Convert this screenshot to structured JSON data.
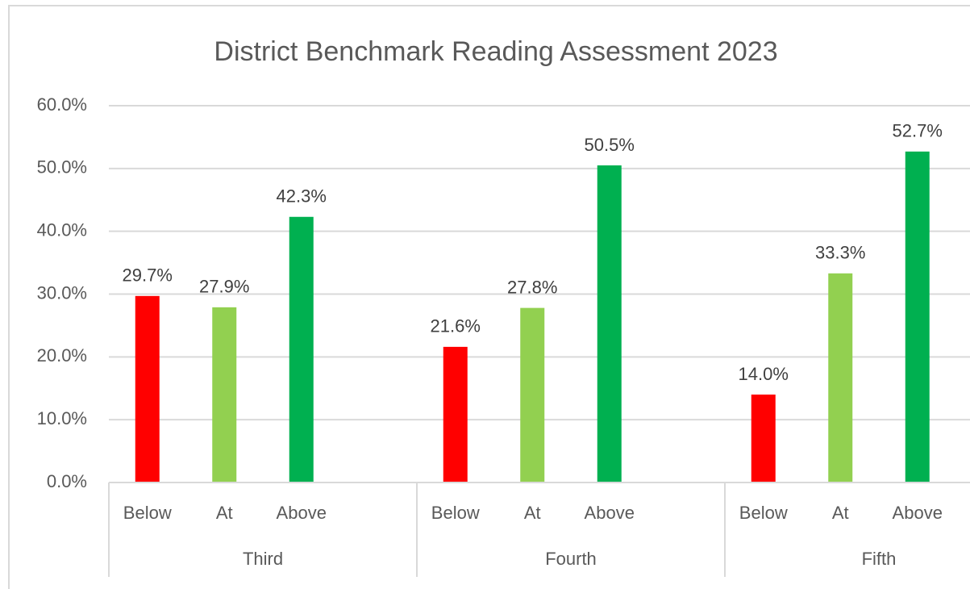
{
  "chart_data": {
    "type": "bar",
    "title": "District Benchmark Reading Assessment 2023",
    "groups": [
      {
        "name": "Third",
        "categories": [
          "Below",
          "At",
          "Above"
        ],
        "values": [
          29.7,
          27.9,
          42.3
        ],
        "value_labels": [
          "29.7%",
          "27.9%",
          "42.3%"
        ]
      },
      {
        "name": "Fourth",
        "categories": [
          "Below",
          "At",
          "Above"
        ],
        "values": [
          21.6,
          27.8,
          50.5
        ],
        "value_labels": [
          "21.6%",
          "27.8%",
          "50.5%"
        ]
      },
      {
        "name": "Fifth",
        "categories": [
          "Below",
          "At",
          "Above"
        ],
        "values": [
          14.0,
          33.3,
          52.7
        ],
        "value_labels": [
          "14.0%",
          "33.3%",
          "52.7%"
        ]
      }
    ],
    "colors": [
      "#ff0000",
      "#92d050",
      "#00b050"
    ],
    "ylim": [
      0,
      60
    ],
    "yticks": [
      {
        "value": 0,
        "label": "0.0%"
      },
      {
        "value": 10,
        "label": "10.0%"
      },
      {
        "value": 20,
        "label": "20.0%"
      },
      {
        "value": 30,
        "label": "30.0%"
      },
      {
        "value": 40,
        "label": "40.0%"
      },
      {
        "value": 50,
        "label": "50.0%"
      },
      {
        "value": 60,
        "label": "60.0%"
      }
    ],
    "grid": true
  }
}
